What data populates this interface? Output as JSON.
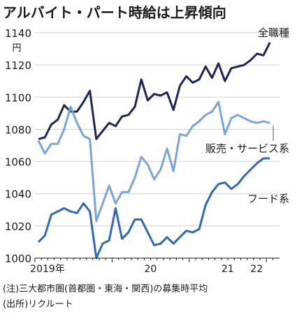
{
  "chart_data": {
    "type": "line",
    "title": "アルバイト・パート時給は上昇傾向",
    "y_unit": "円",
    "ylim": [
      1000,
      1140
    ],
    "yticks": [
      1000,
      1020,
      1040,
      1060,
      1080,
      1100,
      1120,
      1140
    ],
    "x_tick_labels": [
      "2019年",
      "20",
      "21",
      "22"
    ],
    "grid": "horizontal",
    "notes": [
      "(注)三大都市圏(首都圏・東海・関西)の募集時平均",
      "(出所)リクルート"
    ],
    "series": [
      {
        "name": "全職種",
        "color": "#1b2850",
        "values": [
          1074,
          1075,
          1083,
          1086,
          1095,
          1091,
          1091,
          1097,
          1104,
          1074,
          1079,
          1084,
          1082,
          1088,
          1089,
          1094,
          1111,
          1098,
          1102,
          1101,
          1103,
          1092,
          1107,
          1113,
          1109,
          1111,
          1119,
          1112,
          1121,
          1110,
          1118,
          1119,
          1120,
          1123,
          1127,
          1126,
          1134
        ]
      },
      {
        "name": "販売・サービス系",
        "color": "#7aa6d3",
        "values": [
          1073,
          1065,
          1071,
          1071,
          1080,
          1094,
          1084,
          1076,
          1074,
          1023,
          1034,
          1045,
          1034,
          1041,
          1041,
          1050,
          1063,
          1058,
          1049,
          1055,
          1068,
          1054,
          1077,
          1076,
          1082,
          1085,
          1089,
          1091,
          1097,
          1077,
          1087,
          1089,
          1087,
          1085,
          1084,
          1085,
          1084
        ]
      },
      {
        "name": "フード系",
        "color": "#2f6bb3",
        "values": [
          1010,
          1014,
          1027,
          1029,
          1031,
          1029,
          1028,
          1034,
          1029,
          1000,
          1009,
          1011,
          1031,
          1012,
          1016,
          1024,
          1024,
          1016,
          1008,
          1009,
          1013,
          1009,
          1013,
          1017,
          1016,
          1018,
          1033,
          1041,
          1046,
          1047,
          1043,
          1046,
          1051,
          1055,
          1059,
          1062,
          1062
        ]
      }
    ]
  }
}
